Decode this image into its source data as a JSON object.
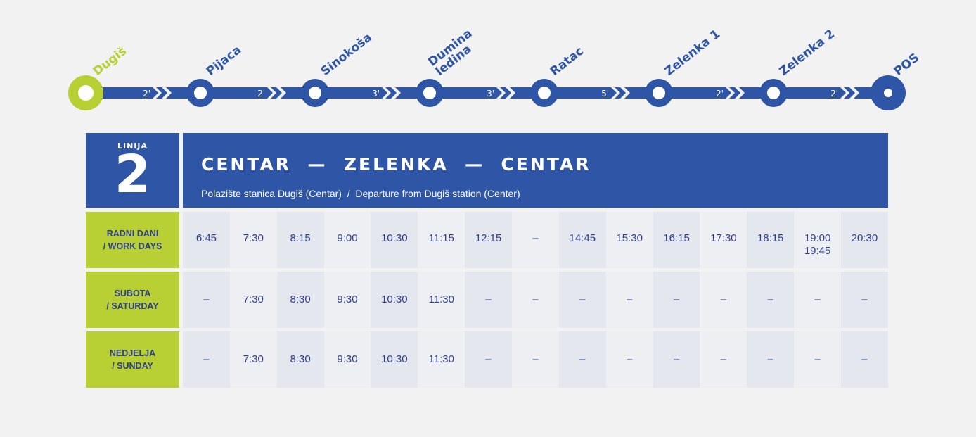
{
  "route": {
    "stations": [
      {
        "name": "Dugiš",
        "lines": [
          "Dugiš"
        ]
      },
      {
        "name": "Pijaca",
        "lines": [
          "Pijaca"
        ]
      },
      {
        "name": "Sinokoša",
        "lines": [
          "Sinokoša"
        ]
      },
      {
        "name": "Dumina ledina",
        "lines": [
          "Dumina",
          "ledina"
        ]
      },
      {
        "name": "Ratac",
        "lines": [
          "Ratac"
        ]
      },
      {
        "name": "Zelenka 1",
        "lines": [
          "Zelenka 1"
        ]
      },
      {
        "name": "Zelenka 2",
        "lines": [
          "Zelenka 2"
        ]
      },
      {
        "name": "POS",
        "lines": [
          "POS"
        ]
      }
    ],
    "durations": [
      "2'",
      "2'",
      "3'",
      "3'",
      "5'",
      "2'",
      "2'"
    ],
    "colors": {
      "line": "#2e55a6",
      "first_station": "#b8d033",
      "background": "#f2f2f2"
    }
  },
  "header": {
    "line_label": "LINIJA",
    "line_number": "2",
    "title": "CENTAR  —  ZELENKA  —  CENTAR",
    "subtitle": "Polazište stanica Dugiš (Centar)  /  Departure from Dugiš station (Center)"
  },
  "schedule": {
    "rows": [
      {
        "label_line1": "RADNI DANI",
        "label_line2": "/ WORK DAYS",
        "times": [
          "6:45",
          "7:30",
          "8:15",
          "9:00",
          "10:30",
          "11:15",
          "12:15",
          "–",
          "14:45",
          "15:30",
          "16:15",
          "17:30",
          "18:15",
          "19:00\n19:45",
          "20:30"
        ]
      },
      {
        "label_line1": "SUBOTA",
        "label_line2": "/ SATURDAY",
        "times": [
          "–",
          "7:30",
          "8:30",
          "9:30",
          "10:30",
          "11:30",
          "–",
          "–",
          "–",
          "–",
          "–",
          "–",
          "–",
          "–",
          "–"
        ]
      },
      {
        "label_line1": "NEDJELJA",
        "label_line2": "/ SUNDAY",
        "times": [
          "–",
          "7:30",
          "8:30",
          "9:30",
          "10:30",
          "11:30",
          "–",
          "–",
          "–",
          "–",
          "–",
          "–",
          "–",
          "–",
          "–"
        ]
      }
    ]
  }
}
